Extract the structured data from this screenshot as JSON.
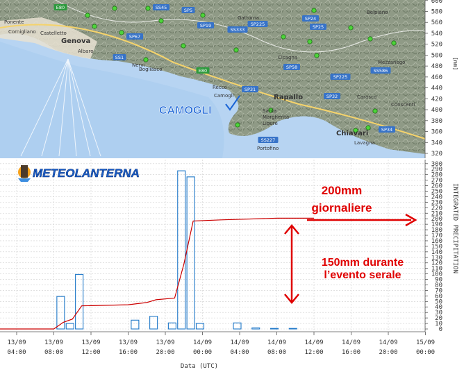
{
  "map": {
    "cities": [
      {
        "name": "Genova",
        "kind": "city"
      },
      {
        "name": "Bogliasco",
        "kind": "town"
      },
      {
        "name": "Recco",
        "kind": "town"
      },
      {
        "name": "Camogli",
        "kind": "town"
      },
      {
        "name": "Rapallo",
        "kind": "city"
      },
      {
        "name": "Santa Margherita Ligure",
        "kind": "town"
      },
      {
        "name": "Portofino",
        "kind": "town"
      },
      {
        "name": "Chiavari",
        "kind": "city"
      },
      {
        "name": "Lavagna",
        "kind": "town"
      },
      {
        "name": "Gattorna",
        "kind": "town"
      },
      {
        "name": "Cicagna",
        "kind": "town"
      },
      {
        "name": "Belpiano",
        "kind": "town"
      },
      {
        "name": "Mezzanego",
        "kind": "town"
      },
      {
        "name": "Carasco",
        "kind": "town"
      },
      {
        "name": "Conscenti",
        "kind": "town"
      },
      {
        "name": "Nervi",
        "kind": "town"
      },
      {
        "name": "Albaro",
        "kind": "town"
      },
      {
        "name": "Castelletto",
        "kind": "town"
      },
      {
        "name": "Cornigliano",
        "kind": "town"
      },
      {
        "name": "Ponente",
        "kind": "town"
      }
    ],
    "roads": [
      "E80",
      "SS45",
      "SP5",
      "SP19",
      "SS333",
      "SP225",
      "SP24",
      "SP25",
      "SP67",
      "SS1",
      "E80",
      "SP31",
      "SP58",
      "SP32",
      "SP225",
      "SS586",
      "SP34",
      "SS227"
    ],
    "highlight_label": "CAMOGLI",
    "highlight_color": "#1a64d6"
  },
  "logo": {
    "text": "METEOLANTERNA"
  },
  "annotations": {
    "daily_line1": "200mm",
    "daily_line2": "giornaliere",
    "event_line1": "150mm durante",
    "event_line2": "l’evento serale",
    "color": "#e00000"
  },
  "chart_data": {
    "type": "bar",
    "xlabel": "Data (UTC)",
    "ylabel_right_outer": "INTEGRATED PRECIPITATION",
    "ylabel_right_inner": "[mm]",
    "x_ticks": [
      {
        "date": "13/09",
        "time": "04:00"
      },
      {
        "date": "13/09",
        "time": "08:00"
      },
      {
        "date": "13/09",
        "time": "12:00"
      },
      {
        "date": "13/09",
        "time": "16:00"
      },
      {
        "date": "13/09",
        "time": "20:00"
      },
      {
        "date": "14/09",
        "time": "00:00"
      },
      {
        "date": "14/09",
        "time": "04:00"
      },
      {
        "date": "14/09",
        "time": "08:00"
      },
      {
        "date": "14/09",
        "time": "12:00"
      },
      {
        "date": "14/09",
        "time": "16:00"
      },
      {
        "date": "14/09",
        "time": "20:00"
      },
      {
        "date": "15/09",
        "time": "00:00"
      }
    ],
    "x_range_hours_from_tick0": [
      -4,
      45
    ],
    "ylim": [
      0,
      600
    ],
    "y_ticks_chart": [
      0,
      10,
      20,
      30,
      40,
      50,
      60,
      70,
      80,
      90,
      100,
      110,
      120,
      130,
      140,
      150,
      160,
      170,
      180,
      190,
      200,
      210,
      220,
      230,
      240,
      250,
      260,
      270,
      280,
      290,
      300
    ],
    "y_ticks_map": [
      320,
      340,
      360,
      380,
      400,
      420,
      440,
      460,
      480,
      500,
      520,
      540,
      560,
      580,
      600
    ],
    "grid": true,
    "bar_color": "#1f78c8",
    "line_color": "#cc0000",
    "series": [
      {
        "name": "hourly",
        "type": "bar",
        "points": [
          {
            "t": 5,
            "v": 59
          },
          {
            "t": 6,
            "v": 10
          },
          {
            "t": 7,
            "v": 99
          },
          {
            "t": 13,
            "v": 16
          },
          {
            "t": 15,
            "v": 23
          },
          {
            "t": 17,
            "v": 11
          },
          {
            "t": 18,
            "v": 287
          },
          {
            "t": 19,
            "v": 276
          },
          {
            "t": 20,
            "v": 10
          },
          {
            "t": 24,
            "v": 11
          },
          {
            "t": 26,
            "v": 2
          },
          {
            "t": 28,
            "v": 1
          },
          {
            "t": 30,
            "v": 1
          }
        ]
      },
      {
        "name": "integrated",
        "type": "line",
        "points": [
          {
            "t": -4,
            "v": 0
          },
          {
            "t": 4,
            "v": 0
          },
          {
            "t": 5,
            "v": 12
          },
          {
            "t": 6,
            "v": 18
          },
          {
            "t": 7,
            "v": 42
          },
          {
            "t": 12,
            "v": 44
          },
          {
            "t": 14,
            "v": 48
          },
          {
            "t": 15,
            "v": 53
          },
          {
            "t": 17,
            "v": 56
          },
          {
            "t": 18,
            "v": 118
          },
          {
            "t": 19,
            "v": 196
          },
          {
            "t": 22,
            "v": 198
          },
          {
            "t": 28,
            "v": 201
          },
          {
            "t": 32,
            "v": 201
          }
        ]
      }
    ]
  }
}
